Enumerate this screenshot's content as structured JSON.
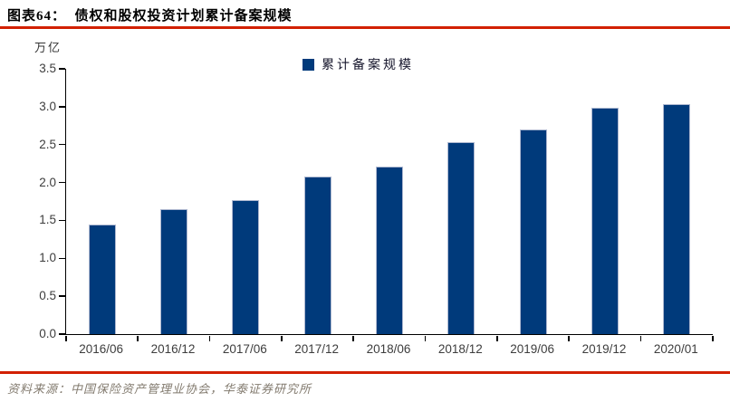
{
  "header": {
    "title": "图表64：  债权和股权投资计划累计备案规模"
  },
  "chart_data": {
    "type": "bar",
    "title": "债权和股权投资计划累计备案规模",
    "unit_label": "万亿",
    "legend": "累计备案规模",
    "legend_position": "top-center",
    "categories": [
      "2016/06",
      "2016/12",
      "2017/06",
      "2017/12",
      "2018/06",
      "2018/12",
      "2019/06",
      "2019/12",
      "2020/01"
    ],
    "values": [
      1.44,
      1.65,
      1.77,
      2.08,
      2.21,
      2.53,
      2.7,
      2.99,
      3.04
    ],
    "xlabel": "",
    "ylabel": "万亿",
    "ylim": [
      0,
      3.5
    ],
    "ytick_step": 0.5,
    "ytick_labels": [
      "0.0",
      "0.5",
      "1.0",
      "1.5",
      "2.0",
      "2.5",
      "3.0",
      "3.5"
    ],
    "grid": false
  },
  "footer": {
    "source": "资料来源：中国保险资产管理业协会，华泰证券研究所"
  },
  "colors": {
    "accent_red": "#D22000",
    "bar_blue": "#003A7B",
    "bar_edge": "#AEB8D0"
  }
}
